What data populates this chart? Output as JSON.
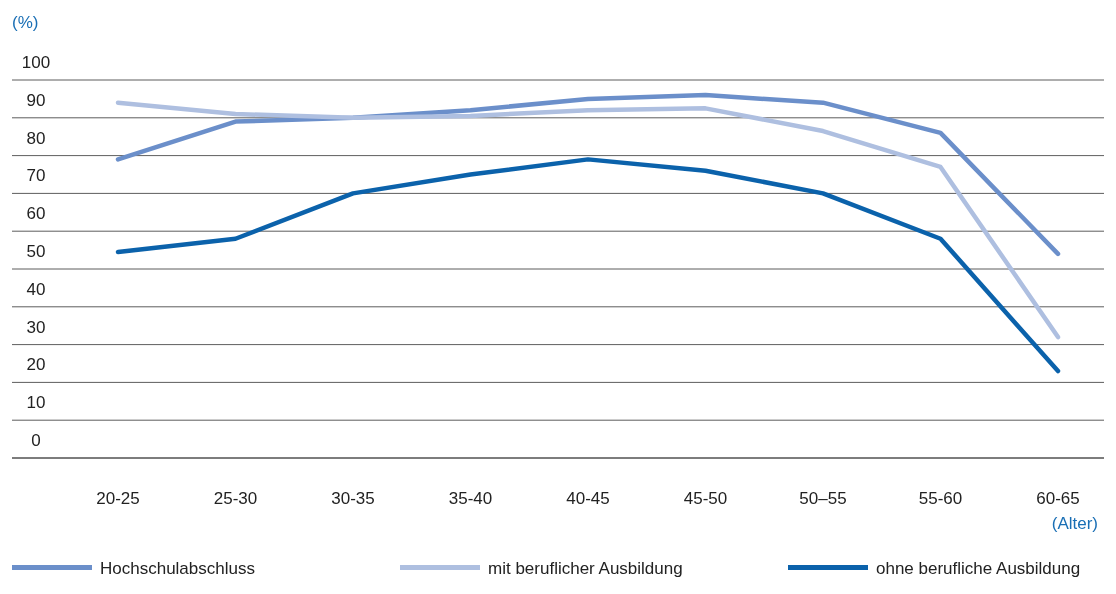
{
  "chart_data": {
    "type": "line",
    "ylabel": "(%)",
    "xlabel": "(Alter)",
    "categories": [
      "20-25",
      "25-30",
      "30-35",
      "35-40",
      "40-45",
      "45-50",
      "50–55",
      "55-60",
      "60-65"
    ],
    "ylim": [
      0,
      100
    ],
    "yticks": [
      0,
      10,
      20,
      30,
      40,
      50,
      60,
      70,
      80,
      90,
      100
    ],
    "grid": "y",
    "legend": "bottom",
    "marker": "none",
    "line_style": "solid",
    "series": [
      {
        "name": "Hochschulabschluss",
        "color": "#6b8fca",
        "values": [
          79,
          89,
          90,
          92,
          95,
          96,
          94,
          86,
          54
        ]
      },
      {
        "name": "mit beruflicher Ausbildung",
        "color": "#aebfe0",
        "values": [
          94,
          91,
          90,
          90.5,
          92,
          92.5,
          86.5,
          77,
          32
        ]
      },
      {
        "name": "ohne berufliche Ausbildung",
        "color": "#0b62ab",
        "values": [
          54.5,
          58,
          70,
          75,
          79,
          76,
          70,
          58,
          23
        ]
      }
    ]
  }
}
